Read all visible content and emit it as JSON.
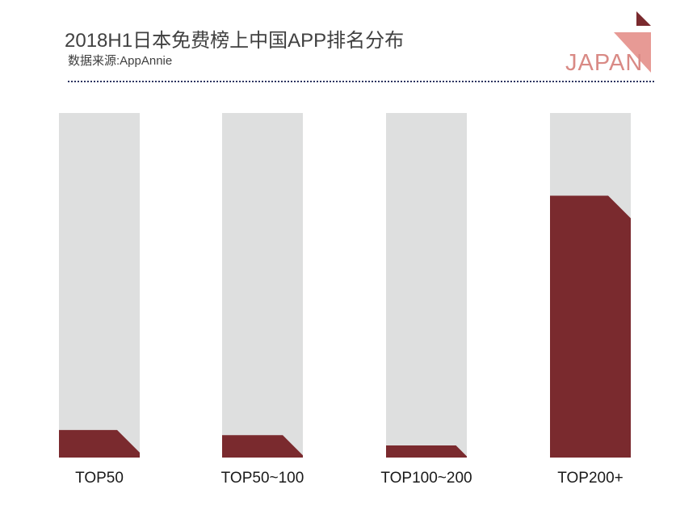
{
  "header": {
    "title": "2018H1日本免费榜上中国APP排名分布",
    "source": "数据来源:AppAnnie",
    "region_label": "JAPAN"
  },
  "colors": {
    "bar_fill": "#7a2a2e",
    "bar_track": "#dedfdf",
    "accent": "#c0392b",
    "title_text": "#404040"
  },
  "chart_data": {
    "type": "bar",
    "title": "2018H1日本免费榜上中国APP排名分布",
    "categories": [
      "TOP50",
      "TOP50~100",
      "TOP100~200",
      "TOP200+"
    ],
    "values": [
      8,
      6.5,
      3.5,
      76
    ],
    "ylim": [
      0,
      100
    ],
    "xlabel": "",
    "ylabel": "",
    "grid": false,
    "legend": "none"
  }
}
